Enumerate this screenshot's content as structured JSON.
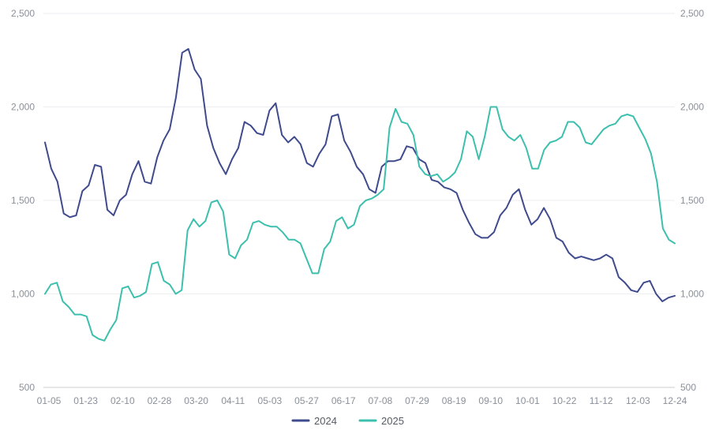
{
  "chart_data": {
    "type": "line",
    "title": "",
    "xlabel": "",
    "ylabel": "",
    "ylim": [
      500,
      2500
    ],
    "yticks": [
      "500",
      "1,000",
      "1,500",
      "2,000",
      "2,500"
    ],
    "xticks": [
      "01-05",
      "01-23",
      "02-10",
      "02-28",
      "03-20",
      "04-11",
      "05-03",
      "05-27",
      "06-17",
      "07-08",
      "07-29",
      "08-19",
      "09-10",
      "10-01",
      "10-22",
      "11-12",
      "12-03",
      "12-24"
    ],
    "grid": true,
    "legend_position": "bottom",
    "series": [
      {
        "name": "2024",
        "color": "#3f4b8c",
        "values": [
          1810,
          1670,
          1600,
          1430,
          1410,
          1420,
          1550,
          1580,
          1690,
          1680,
          1450,
          1420,
          1500,
          1530,
          1640,
          1710,
          1600,
          1590,
          1730,
          1820,
          1880,
          2050,
          2290,
          2310,
          2200,
          2150,
          1900,
          1780,
          1700,
          1640,
          1720,
          1780,
          1920,
          1900,
          1860,
          1850,
          1980,
          2020,
          1850,
          1810,
          1840,
          1800,
          1700,
          1680,
          1750,
          1800,
          1950,
          1960,
          1820,
          1760,
          1680,
          1640,
          1560,
          1540,
          1680,
          1710,
          1710,
          1720,
          1790,
          1780,
          1720,
          1700,
          1610,
          1600,
          1570,
          1560,
          1540,
          1450,
          1380,
          1320,
          1300,
          1300,
          1330,
          1420,
          1460,
          1530,
          1560,
          1450,
          1370,
          1400,
          1460,
          1400,
          1300,
          1280,
          1220,
          1190,
          1200,
          1190,
          1180,
          1190,
          1210,
          1190,
          1090,
          1060,
          1020,
          1010,
          1060,
          1070,
          1000,
          960,
          980,
          990
        ]
      },
      {
        "name": "2025",
        "color": "#3dbfae",
        "values": [
          1000,
          1050,
          1060,
          960,
          930,
          890,
          890,
          880,
          780,
          760,
          750,
          810,
          860,
          1030,
          1040,
          980,
          990,
          1010,
          1160,
          1170,
          1070,
          1050,
          1000,
          1020,
          1340,
          1400,
          1360,
          1390,
          1490,
          1500,
          1440,
          1210,
          1190,
          1260,
          1290,
          1380,
          1390,
          1370,
          1360,
          1360,
          1330,
          1290,
          1290,
          1270,
          1190,
          1110,
          1110,
          1240,
          1280,
          1390,
          1410,
          1350,
          1370,
          1470,
          1500,
          1510,
          1530,
          1560,
          1890,
          1990,
          1920,
          1910,
          1850,
          1680,
          1640,
          1630,
          1640,
          1600,
          1620,
          1650,
          1720,
          1870,
          1840,
          1720,
          1840,
          2000,
          2000,
          1880,
          1840,
          1820,
          1850,
          1780,
          1670,
          1670,
          1770,
          1810,
          1820,
          1840,
          1920,
          1920,
          1890,
          1810,
          1800,
          1840,
          1880,
          1900,
          1910,
          1950,
          1960,
          1950,
          1890,
          1830,
          1750,
          1600,
          1350,
          1290,
          1270
        ]
      }
    ]
  }
}
